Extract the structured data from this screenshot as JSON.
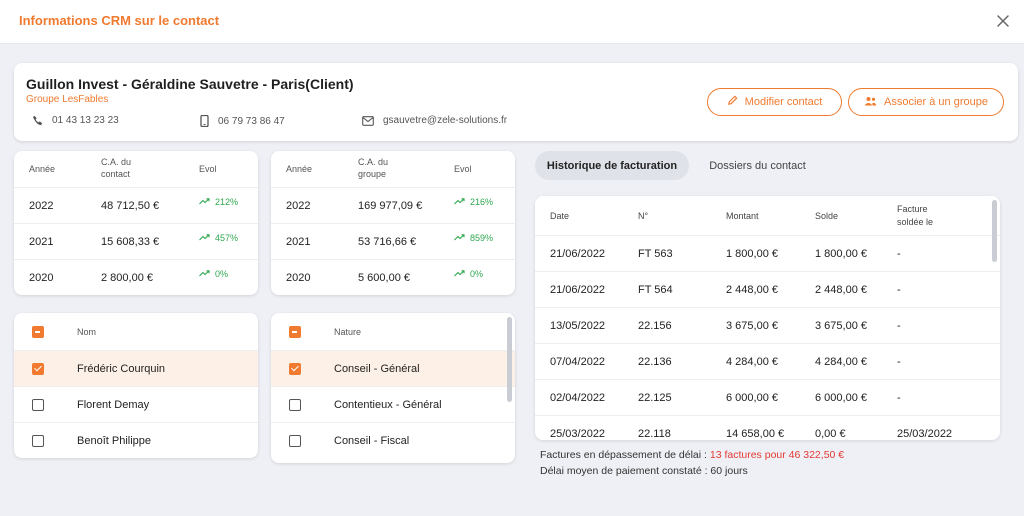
{
  "modal": {
    "title": "Informations CRM sur le contact"
  },
  "contact": {
    "name": "Guillon Invest - Géraldine Sauvetre - Paris(Client)",
    "group": "Groupe LesFables",
    "phone": "01 43 13 23 23",
    "mobile": "06 79 73 86 47",
    "email": "gsauvetre@zele-solutions.fr"
  },
  "actions": {
    "modify": "Modifier contact",
    "associate": "Associer à un groupe"
  },
  "ca_contact": {
    "headers": {
      "year": "Année",
      "ca": "C.A. du contact",
      "evol": "Evol"
    },
    "rows": [
      {
        "year": "2022",
        "ca": "48 712,50 €",
        "evol": "212%"
      },
      {
        "year": "2021",
        "ca": "15 608,33 €",
        "evol": "457%"
      },
      {
        "year": "2020",
        "ca": "2 800,00 €",
        "evol": "0%"
      }
    ]
  },
  "ca_groupe": {
    "headers": {
      "year": "Année",
      "ca": "C.A. du groupe",
      "evol": "Evol"
    },
    "rows": [
      {
        "year": "2022",
        "ca": "169 977,09 €",
        "evol": "216%"
      },
      {
        "year": "2021",
        "ca": "53 716,66 €",
        "evol": "859%"
      },
      {
        "year": "2020",
        "ca": "5 600,00 €",
        "evol": "0%"
      }
    ]
  },
  "names": {
    "header": "Nom",
    "rows": [
      {
        "label": "Frédéric Courquin",
        "checked": true
      },
      {
        "label": "Florent Demay",
        "checked": false
      },
      {
        "label": "Benoît Philippe",
        "checked": false
      }
    ]
  },
  "natures": {
    "header": "Nature",
    "rows": [
      {
        "label": "Conseil - Général",
        "checked": true
      },
      {
        "label": "Contentieux - Général",
        "checked": false
      },
      {
        "label": "Conseil - Fiscal",
        "checked": false
      }
    ]
  },
  "tabs": {
    "billing": "Historique de facturation",
    "files": "Dossiers du contact"
  },
  "invoices": {
    "headers": {
      "date": "Date",
      "number": "N°",
      "amount": "Montant",
      "balance": "Solde",
      "paid_l1": "Facture",
      "paid_l2": "soldée le"
    },
    "rows": [
      {
        "date": "21/06/2022",
        "number": "FT 563",
        "amount": "1 800,00 €",
        "balance": "1 800,00 €",
        "paid": "-"
      },
      {
        "date": "21/06/2022",
        "number": "FT 564",
        "amount": "2 448,00 €",
        "balance": "2 448,00 €",
        "paid": "-"
      },
      {
        "date": "13/05/2022",
        "number": "22.156",
        "amount": "3 675,00 €",
        "balance": "3 675,00 €",
        "paid": "-"
      },
      {
        "date": "07/04/2022",
        "number": "22.136",
        "amount": "4 284,00 €",
        "balance": "4 284,00 €",
        "paid": "-"
      },
      {
        "date": "02/04/2022",
        "number": "22.125",
        "amount": "6 000,00 €",
        "balance": "6 000,00 €",
        "paid": "-"
      },
      {
        "date": "25/03/2022",
        "number": "22.118",
        "amount": "14 658,00 €",
        "balance": "0,00 €",
        "paid": "25/03/2022"
      }
    ]
  },
  "summary": {
    "overdue_label": "Factures en dépassement de délai : ",
    "overdue_value": "13 factures pour 46 322,50 €",
    "avg_delay": "Délai moyen de paiement constaté : 60 jours"
  },
  "colors": {
    "accent": "#f07a2f",
    "positive": "#2fa84f",
    "danger": "#e53935"
  }
}
